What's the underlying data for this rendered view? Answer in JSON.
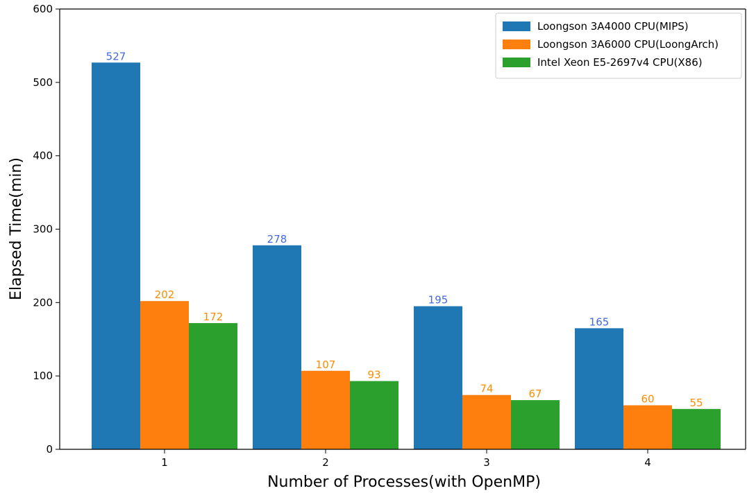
{
  "chart_data": {
    "type": "bar",
    "categories": [
      "1",
      "2",
      "3",
      "4"
    ],
    "series": [
      {
        "name": "Loongson 3A4000 CPU(MIPS)",
        "values": [
          527,
          278,
          195,
          165
        ],
        "color": "#1f77b4",
        "label_color": "#4169e1"
      },
      {
        "name": "Loongson 3A6000 CPU(LoongArch)",
        "values": [
          202,
          107,
          74,
          60
        ],
        "color": "#ff7f0e",
        "label_color": "#ff8c00"
      },
      {
        "name": "Intel Xeon E5-2697v4 CPU(X86)",
        "values": [
          172,
          93,
          67,
          55
        ],
        "color": "#2ca02c",
        "label_color": "#ff8c00"
      }
    ],
    "title": "",
    "xlabel": "Number of Processes(with OpenMP)",
    "ylabel": "Elapsed Time(min)",
    "ylim": [
      0,
      600
    ],
    "yticks": [
      0,
      100,
      200,
      300,
      400,
      500,
      600
    ],
    "grid": false,
    "legend_position": "top-right"
  }
}
